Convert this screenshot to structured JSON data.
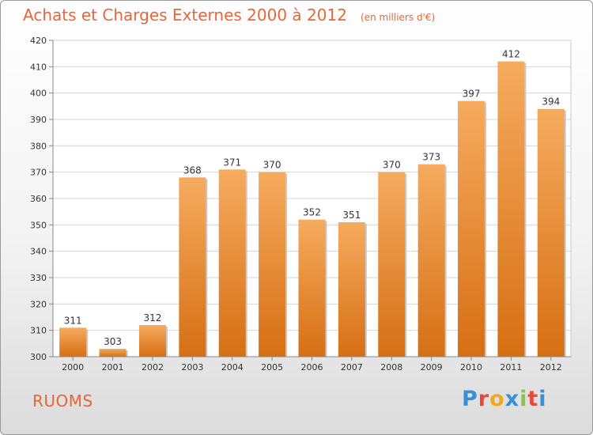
{
  "header": {
    "title": "Achats et Charges Externes 2000 à 2012",
    "unit": "(en milliers d'€)"
  },
  "footer": {
    "town": "RUOMS",
    "brand": "Proxiti"
  },
  "colors": {
    "bar_top": "#f6ab5f",
    "bar_bottom": "#d66f14",
    "title": "#e8663a"
  },
  "chart_data": {
    "type": "bar",
    "categories": [
      "2000",
      "2001",
      "2002",
      "2003",
      "2004",
      "2005",
      "2006",
      "2007",
      "2008",
      "2009",
      "2010",
      "2011",
      "2012"
    ],
    "values": [
      311,
      303,
      312,
      368,
      371,
      370,
      352,
      351,
      370,
      373,
      397,
      412,
      394
    ],
    "ylim": [
      300,
      420
    ],
    "yticks": [
      300,
      310,
      320,
      330,
      340,
      350,
      360,
      370,
      380,
      390,
      400,
      410,
      420
    ],
    "grid": true,
    "data_labels": true
  }
}
